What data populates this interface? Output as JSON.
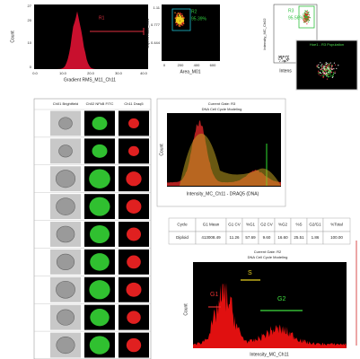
{
  "histogram_panel": {
    "y_label": "Count",
    "x_label": "Gradient RMS_M11_Ch11",
    "gate": "R1",
    "yticks": [
      "27",
      "20",
      "10",
      "0"
    ],
    "xticks": [
      "0.0",
      "10.0",
      "20.0",
      "30.0",
      "40.0"
    ]
  },
  "scatter_panel": {
    "y_label": "Aspect Ratio_M01",
    "x_label": "Area_M01",
    "gate": "R2",
    "gate_percent": "95.39%",
    "yticks": [
      "1.11",
      "0.777",
      "0.444"
    ],
    "xticks": [
      "0",
      "200",
      "400",
      "600"
    ]
  },
  "intensity_panel": {
    "y_label": "Intensity_MC_Ch02",
    "x_label": "Intens",
    "gate": "R3",
    "gate_percent": "95.56%",
    "inset_title": "Hoe1 - R3 Population"
  },
  "image_gallery": {
    "headers": [
      "Ch01 Brightfield",
      "Ch02 NFkB FITC",
      "Ch11 Draq5"
    ]
  },
  "cell_cycle_panel": {
    "title": "Current Gate: R3",
    "subtitle": "DNA Cell Cycle Modeling",
    "y_label": "Count",
    "x_label": "Intensity_MC_Ch11 - DRAQ5 (DNA)"
  },
  "table": {
    "header": [
      "Cycle",
      "G1 Mean",
      "G1 CV",
      "%G1",
      "G2 CV",
      "%G2",
      "%S",
      "G2/G1",
      "%Total"
    ],
    "rows": [
      [
        "Diploid",
        "413008.49",
        "11.26",
        "57.69",
        "9.60",
        "16.60",
        "25.51",
        "1.86",
        "100.00"
      ]
    ]
  },
  "gated_panel": {
    "title": "Current Gate: R2",
    "subtitle": "DNA Cell Cycle Modeling",
    "y_label": "Count",
    "x_label": "Intensity_MC_Ch11",
    "phases": [
      "G1",
      "S",
      "G2"
    ]
  }
}
